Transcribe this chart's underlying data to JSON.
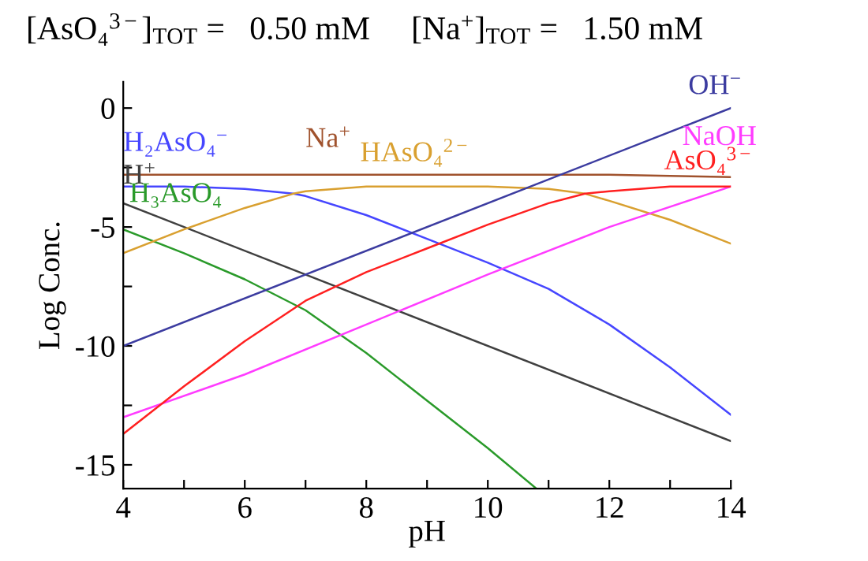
{
  "chart_data": {
    "type": "line",
    "title": "[AsO₄$^{3−}$]$_{TOT}$ =   0.50 mM     [Na$^{+}$]$_{TOT}$ =   1.50 mM",
    "xlabel": "pH",
    "ylabel": "Log Conc.",
    "xlim": [
      4,
      14
    ],
    "ylim": [
      -16,
      1.1
    ],
    "xticks": [
      4,
      {
        "value": 5,
        "label": null
      },
      6,
      {
        "value": 7,
        "label": null
      },
      8,
      {
        "value": 9,
        "label": null
      },
      10,
      {
        "value": 11,
        "label": null
      },
      12,
      {
        "value": 13,
        "label": null
      },
      14
    ],
    "yticks": [
      {
        "value": -15,
        "label": "-15"
      },
      {
        "value": -12.5,
        "label": null
      },
      {
        "value": -10,
        "label": "-10"
      },
      {
        "value": -7.5,
        "label": null
      },
      {
        "value": -5,
        "label": "-5"
      },
      {
        "value": -2.5,
        "label": null
      },
      0
    ],
    "grid": false,
    "legend": false,
    "marker": "none",
    "line_style": "solid",
    "series": [
      {
        "name": "H₂AsO₄$^{−}$",
        "color": "#4646ff",
        "x": [
          4,
          5,
          6,
          6.8,
          7,
          8,
          9,
          10,
          11,
          12,
          13,
          14
        ],
        "values": [
          -3.3,
          -3.3,
          -3.4,
          -3.6,
          -3.7,
          -4.5,
          -5.5,
          -6.5,
          -7.6,
          -9.1,
          -10.9,
          -12.9
        ]
      },
      {
        "name": "H$^{+}$",
        "color": "#404040",
        "x": [
          4,
          14
        ],
        "values": [
          -4,
          -14
        ]
      },
      {
        "name": "H₃AsO₄",
        "color": "#2a9a2a",
        "x": [
          4,
          5,
          6,
          7,
          8,
          9,
          10,
          10.8
        ],
        "values": [
          -5.1,
          -6.1,
          -7.2,
          -8.5,
          -10.3,
          -12.3,
          -14.3,
          -16
        ]
      },
      {
        "name": "Na$^{+}$",
        "color": "#a0522d",
        "x": [
          4,
          6,
          8,
          10,
          12,
          13,
          14
        ],
        "values": [
          -2.8,
          -2.8,
          -2.8,
          -2.8,
          -2.8,
          -2.85,
          -2.9
        ]
      },
      {
        "name": "HAsO₄$^{2−}$",
        "color": "#d9a030",
        "x": [
          4,
          5,
          6,
          6.8,
          7,
          8,
          9,
          10,
          11,
          11.6,
          12,
          13,
          14
        ],
        "values": [
          -6.1,
          -5.1,
          -4.2,
          -3.6,
          -3.5,
          -3.3,
          -3.3,
          -3.3,
          -3.4,
          -3.6,
          -3.9,
          -4.7,
          -5.7
        ]
      },
      {
        "name": "OH$^{−}$",
        "color": "#3c3ca0",
        "x": [
          4,
          14
        ],
        "values": [
          -10,
          0
        ]
      },
      {
        "name": "NaOH",
        "color": "#ff3cff",
        "x": [
          4,
          6,
          8,
          10,
          12,
          14
        ],
        "values": [
          -13,
          -11.2,
          -9.1,
          -7,
          -5,
          -3.3
        ]
      },
      {
        "name": "AsO₄$^{3−}$",
        "color": "#ff2020",
        "x": [
          4,
          5,
          6,
          7,
          8,
          9,
          10,
          11,
          11.6,
          12,
          13,
          14
        ],
        "values": [
          -13.7,
          -11.7,
          -9.8,
          -8.1,
          -6.9,
          -5.9,
          -4.9,
          -4,
          -3.6,
          -3.5,
          -3.3,
          -3.3
        ]
      }
    ]
  }
}
